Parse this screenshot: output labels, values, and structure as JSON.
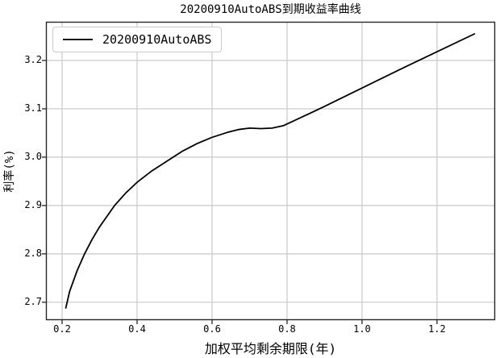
{
  "chart_data": {
    "type": "line",
    "title": "20200910AutoABS到期收益率曲线",
    "xlabel": "加权平均剩余期限(年)",
    "ylabel": "利率(%)",
    "grid": true,
    "legend_position": "upper left",
    "xlim": [
      0.157,
      1.355
    ],
    "ylim": [
      2.663,
      3.28
    ],
    "x_ticks": [
      0.2,
      0.4,
      0.6,
      0.8,
      1.0,
      1.2
    ],
    "y_ticks": [
      2.7,
      2.8,
      2.9,
      3.0,
      3.1,
      3.2
    ],
    "colors": {
      "line": "#000000",
      "gridline": "#c9c9c9",
      "spine": "#262626",
      "text": "#000000",
      "legend_border": "#cccccc"
    },
    "series": [
      {
        "name": "20200910AutoABS",
        "color": "#000000",
        "points": [
          [
            0.21,
            2.688
          ],
          [
            0.22,
            2.722
          ],
          [
            0.24,
            2.765
          ],
          [
            0.26,
            2.8
          ],
          [
            0.28,
            2.83
          ],
          [
            0.3,
            2.856
          ],
          [
            0.32,
            2.878
          ],
          [
            0.34,
            2.9
          ],
          [
            0.37,
            2.926
          ],
          [
            0.4,
            2.948
          ],
          [
            0.44,
            2.972
          ],
          [
            0.48,
            2.992
          ],
          [
            0.52,
            3.012
          ],
          [
            0.56,
            3.028
          ],
          [
            0.6,
            3.041
          ],
          [
            0.64,
            3.051
          ],
          [
            0.67,
            3.057
          ],
          [
            0.7,
            3.06
          ],
          [
            0.73,
            3.059
          ],
          [
            0.76,
            3.06
          ],
          [
            0.79,
            3.065
          ],
          [
            0.84,
            3.083
          ],
          [
            0.9,
            3.105
          ],
          [
            1.0,
            3.143
          ],
          [
            1.1,
            3.181
          ],
          [
            1.2,
            3.218
          ],
          [
            1.3,
            3.255
          ]
        ]
      }
    ]
  }
}
